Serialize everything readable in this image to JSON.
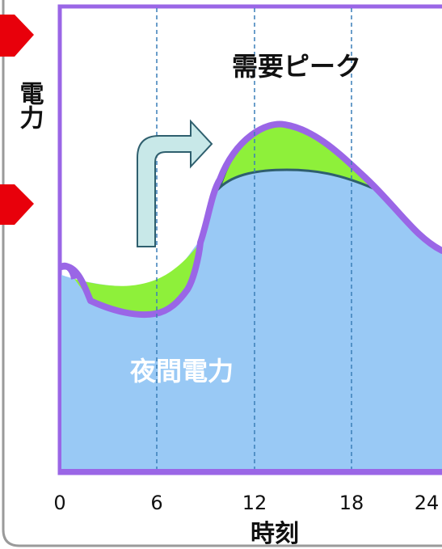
{
  "diagram": {
    "peak_label": "需要ピーク",
    "night_label": "夜間電力",
    "y_axis_label": "電力",
    "x_axis_label": "時刻",
    "x_ticks": [
      "0",
      "6",
      "12",
      "18",
      "24"
    ]
  },
  "colors": {
    "frame": "#9a66e6",
    "area_fill": "#99c9f5",
    "highlight_fill": "#8ef03a",
    "highlight_stroke": "#2f5f6e",
    "arrow_fill": "#c8e8e8",
    "arrow_stroke": "#2f5f6e",
    "red_marker": "#e8000b",
    "night_text": "#ffffff",
    "dashed_line": "#3a7fb8"
  }
}
